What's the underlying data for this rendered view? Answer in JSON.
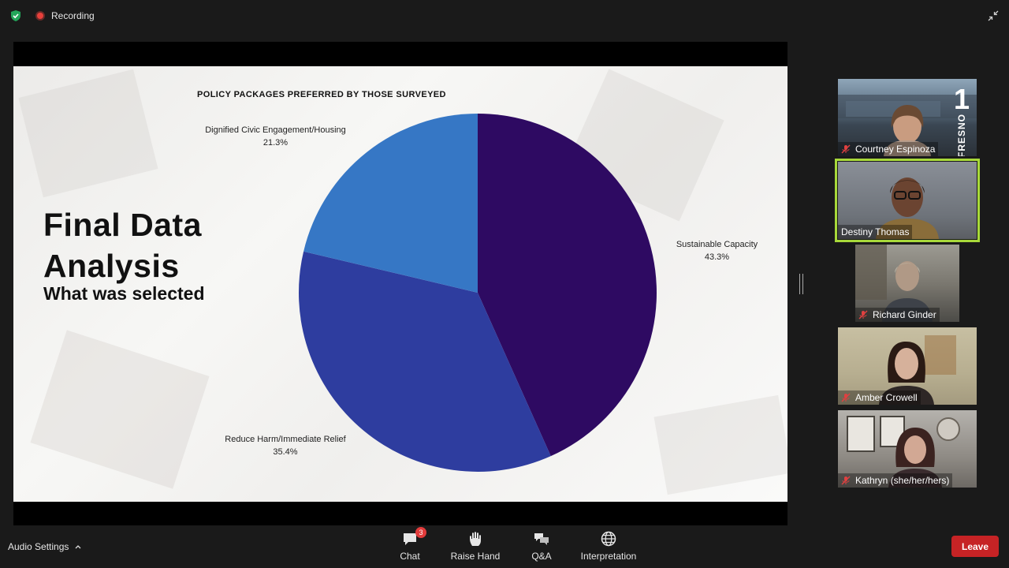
{
  "top_bar": {
    "recording_label": "Recording"
  },
  "slide": {
    "title_line1": "Final Data",
    "title_line2": "Analysis",
    "subtitle": "What was selected",
    "chart_title": "POLICY PACKAGES PREFERRED BY THOSE SURVEYED"
  },
  "chart_data": {
    "type": "pie",
    "title": "POLICY PACKAGES PREFERRED BY THOSE SURVEYED",
    "categories": [
      "Sustainable Capacity",
      "Reduce Harm/Immediate Relief",
      "Dignified Civic Engagement/Housing"
    ],
    "values": [
      43.3,
      35.4,
      21.3
    ],
    "value_labels": [
      "43.3%",
      "35.4%",
      "21.3%"
    ],
    "colors": [
      "#2e0a62",
      "#2e3d9f",
      "#3677c5"
    ],
    "legend": "none"
  },
  "participants": [
    {
      "name": "Courtney Espinoza",
      "muted": true,
      "active": false
    },
    {
      "name": "Destiny Thomas",
      "muted": false,
      "active": true
    },
    {
      "name": "Richard Ginder",
      "muted": true,
      "active": false
    },
    {
      "name": "Amber Crowell",
      "muted": true,
      "active": false
    },
    {
      "name": "Kathryn (she/her/hers)",
      "muted": true,
      "active": false
    }
  ],
  "tile_logo": {
    "number": "1",
    "word": "FRESNO"
  },
  "toolbar": {
    "audio_settings_label": "Audio Settings",
    "chat_label": "Chat",
    "chat_badge": "3",
    "raise_hand_label": "Raise Hand",
    "qa_label": "Q&A",
    "interpretation_label": "Interpretation",
    "leave_label": "Leave"
  },
  "colors": {
    "active_speaker_border": "#a8d93a",
    "leave_button": "#c62325",
    "recording_dot": "#e8403b"
  }
}
